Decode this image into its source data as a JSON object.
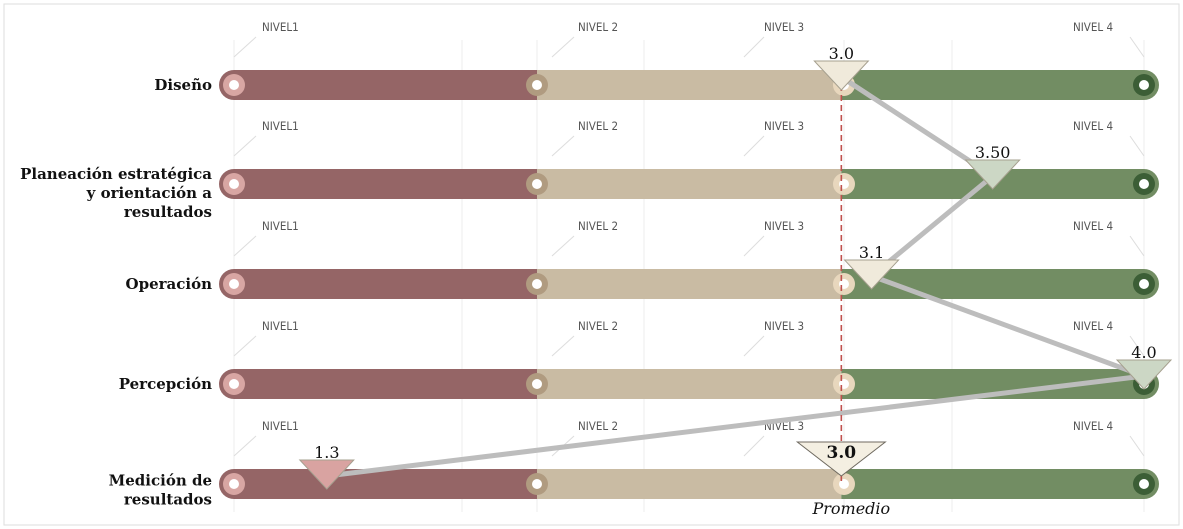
{
  "chart_data": {
    "type": "line",
    "categories": [
      "Diseño",
      "Planeación estratégica y orientación a resultados",
      "Operación",
      "Percepción",
      "Medición de resultados"
    ],
    "category_lines": [
      [
        "Diseño"
      ],
      [
        "Planeación estratégica",
        "y orientación a",
        "resultados"
      ],
      [
        "Operación"
      ],
      [
        "Percepción"
      ],
      [
        "Medición de",
        "resultados"
      ]
    ],
    "level_labels": [
      "NIVEL1",
      "NIVEL 2",
      "NIVEL 3",
      "NIVEL 4"
    ],
    "values": [
      3.0,
      3.5,
      3.1,
      4.0,
      1.3
    ],
    "value_labels": [
      "3.0",
      "3.50",
      "3.1",
      "4.0",
      "1.3"
    ],
    "average": 3.0,
    "average_value_label": "3.0",
    "average_label": "Promedio",
    "xlim": [
      1,
      4
    ],
    "colors": {
      "level1": "#956566",
      "level2_3": "#c9bba3",
      "level4": "#728d63",
      "marker_low": "#d9a3a1",
      "marker_mid": "#f0eadb",
      "marker_high": "#ccd7c5",
      "connector": "#bdbdbd",
      "average_line": "#c0504d"
    }
  }
}
